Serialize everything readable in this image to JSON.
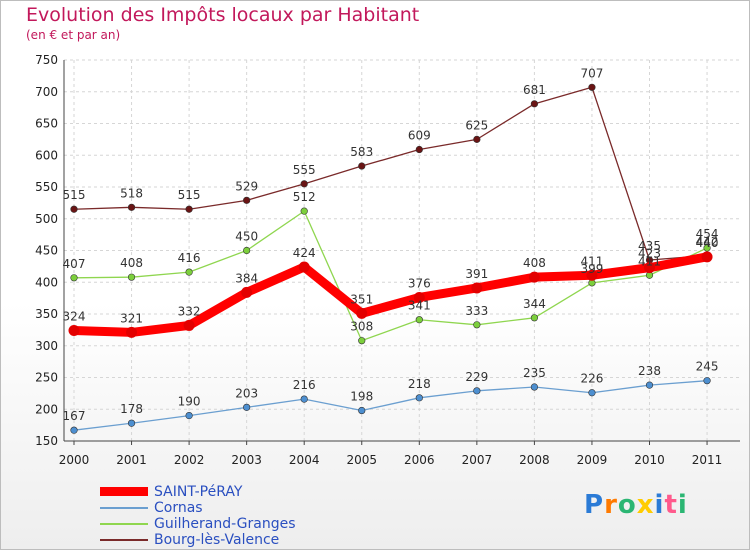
{
  "chart_data": {
    "type": "line",
    "title": "Evolution des Impôts locaux par Habitant",
    "subtitle": "(en € et par an)",
    "xlabel": "",
    "ylabel": "",
    "x": [
      "2000",
      "2001",
      "2002",
      "2003",
      "2004",
      "2005",
      "2006",
      "2007",
      "2008",
      "2009",
      "2010",
      "2011"
    ],
    "ylim": [
      150,
      750
    ],
    "yticks": [
      150,
      200,
      250,
      300,
      350,
      400,
      450,
      500,
      550,
      600,
      650,
      700,
      750
    ],
    "grid": true,
    "legend_position": "bottom-left",
    "series": [
      {
        "name": "Bourg-lès-Valence",
        "color": "#7a2a2a",
        "marker_color": "#6a1414",
        "emphasis": false,
        "values": [
          515,
          518,
          515,
          529,
          555,
          583,
          609,
          625,
          681,
          707,
          435,
          442
        ]
      },
      {
        "name": "Guilherand-Granges",
        "color": "#8fd64f",
        "marker_color": "#7ccf3c",
        "emphasis": false,
        "values": [
          407,
          408,
          416,
          450,
          512,
          308,
          341,
          333,
          344,
          399,
          411,
          454
        ]
      },
      {
        "name": "Cornas",
        "color": "#6b9fd0",
        "marker_color": "#4d8fd0",
        "emphasis": false,
        "values": [
          167,
          178,
          190,
          203,
          216,
          198,
          218,
          229,
          235,
          226,
          238,
          245
        ]
      },
      {
        "name": "SAINT-PéRAY",
        "color": "#ff0000",
        "marker_color": "#e30000",
        "emphasis": true,
        "values": [
          324,
          321,
          332,
          384,
          424,
          351,
          376,
          391,
          408,
          411,
          423,
          440
        ]
      }
    ]
  },
  "legend_items": [
    "SAINT-PéRAY",
    "Cornas",
    "Guilherand-Granges",
    "Bourg-lès-Valence"
  ],
  "logo": {
    "letters": [
      "P",
      "r",
      "o",
      "x",
      "i",
      "t",
      "i"
    ],
    "colors": [
      "#2b7bd6",
      "#ff7a00",
      "#2bb673",
      "#ffcc00",
      "#2b7bd6",
      "#ff5a8c",
      "#2bb673"
    ]
  }
}
